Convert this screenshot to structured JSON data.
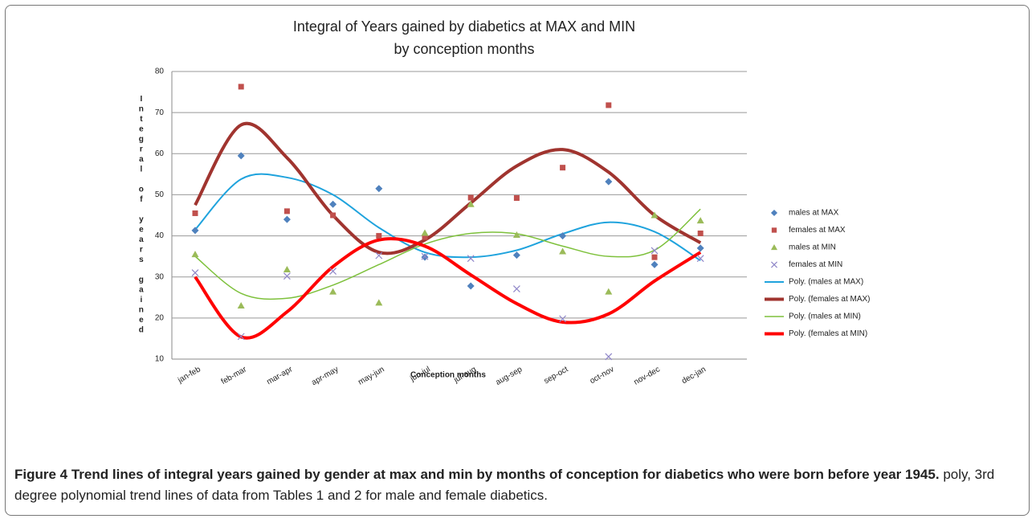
{
  "chart_data": {
    "type": "scatter",
    "title": [
      "Integral of Years gained by diabetics at MAX and MIN",
      "by conception months"
    ],
    "x_label": "Conception months",
    "y_label": "Integral of years gained",
    "categories": [
      "jan-feb",
      "feb-mar",
      "mar-apr",
      "apr-may",
      "may-jun",
      "jun-jul",
      "jul-aug",
      "aug-sep",
      "sep-oct",
      "oct-nov",
      "nov-dec",
      "dec-jan"
    ],
    "ylim": [
      10,
      80
    ],
    "yticks": [
      10,
      20,
      30,
      40,
      50,
      60,
      70,
      80
    ],
    "grid": true,
    "series": [
      {
        "name": "males at MAX",
        "color": "#4f81bd",
        "marker": "diamond",
        "values": [
          41.3,
          59.5,
          44,
          47.7,
          51.5,
          34.8,
          27.8,
          35.3,
          40,
          53.2,
          33,
          37
        ]
      },
      {
        "name": "females at MAX",
        "color": "#c0504d",
        "marker": "square",
        "values": [
          45.5,
          76.3,
          46,
          45,
          40,
          39.7,
          49.3,
          49.2,
          56.6,
          71.8,
          34.8,
          40.6
        ]
      },
      {
        "name": "males at MIN",
        "color": "#9bbb59",
        "marker": "triangle",
        "values": [
          35.5,
          23,
          31.8,
          26.4,
          23.7,
          40.7,
          47.7,
          40.2,
          36.2,
          26.4,
          45,
          43.7
        ]
      },
      {
        "name": "females at MIN",
        "color": "#8f86c8",
        "marker": "cross",
        "values": [
          31,
          15.5,
          30.2,
          31.4,
          35.2,
          35,
          34.5,
          27.1,
          19.8,
          10.6,
          36.4,
          34.5
        ]
      },
      {
        "name": "Poly. (males at MAX)",
        "color": "#1fa3dd",
        "marker": "line",
        "width": 2,
        "values": [
          41.5,
          53.8,
          54.2,
          50,
          42,
          36,
          34.8,
          36.5,
          40.5,
          43.3,
          41,
          34
        ]
      },
      {
        "name": "Poly. (females at MAX)",
        "color": "#a0342f",
        "marker": "line",
        "width": 4,
        "values": [
          47.5,
          67,
          59,
          45,
          36,
          39,
          48,
          57,
          61,
          55.5,
          45,
          38.3
        ]
      },
      {
        "name": "Poly. (males at MIN)",
        "color": "#7ec13c",
        "marker": "line",
        "width": 1.5,
        "values": [
          35,
          26,
          24.8,
          28,
          33,
          38,
          40.6,
          40.5,
          37.5,
          35,
          36.5,
          46.5
        ]
      },
      {
        "name": "Poly. (females at MIN)",
        "color": "#ff0000",
        "marker": "line",
        "width": 4,
        "values": [
          30,
          15.4,
          21.5,
          32.5,
          39,
          37.5,
          30.5,
          23.5,
          19,
          21,
          29,
          36
        ]
      }
    ]
  },
  "caption": {
    "label": "Figure 4",
    "title": "Trend lines of integral years gained by gender at max and min by months of conception for diabetics who were born before year 1945.",
    "text": "poly, 3rd degree polynomial trend lines of data from Tables 1 and 2 for male and female diabetics."
  }
}
